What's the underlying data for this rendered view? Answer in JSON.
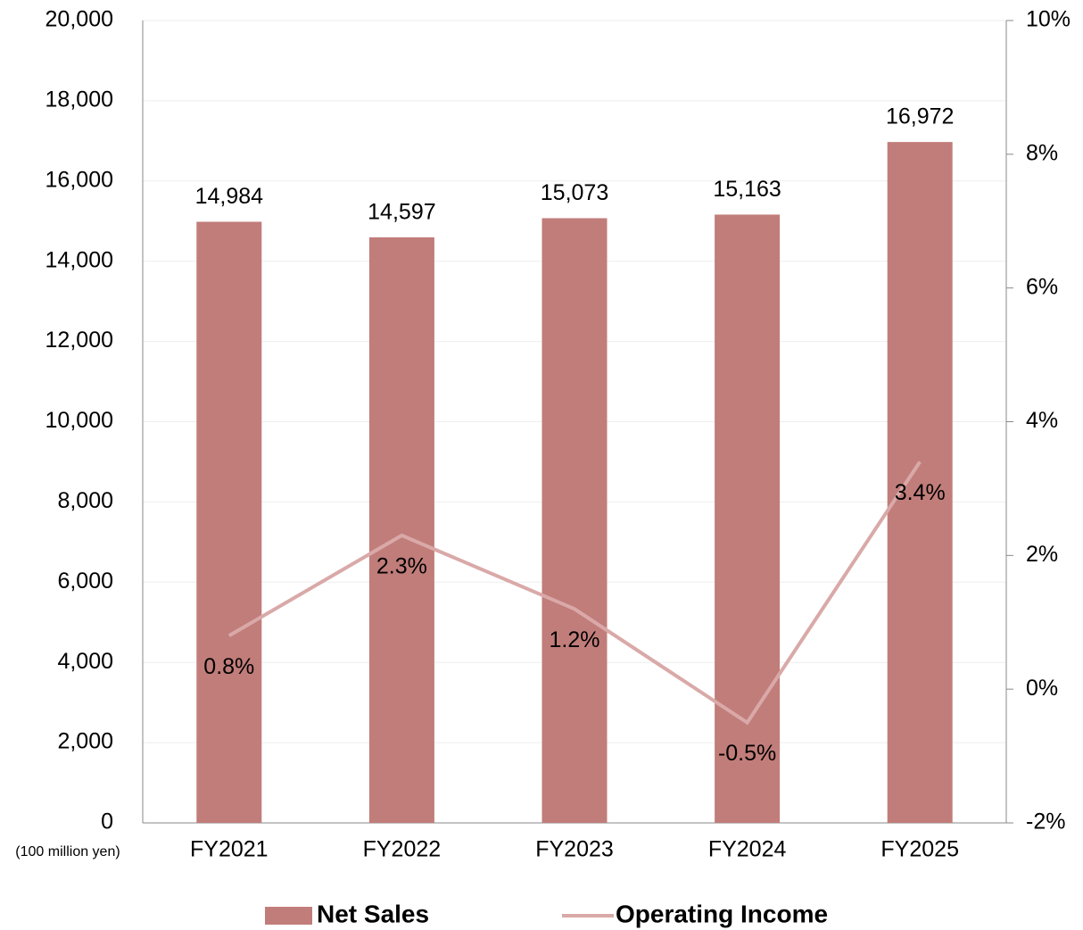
{
  "chart_data": {
    "type": "bar",
    "y_axis_label": "(100 million yen)",
    "categories": [
      "FY2021",
      "FY2022",
      "FY2023",
      "FY2024",
      "FY2025"
    ],
    "series": [
      {
        "name": "Net Sales",
        "type": "bar",
        "color": "#c17d7a",
        "values": [
          14984,
          14597,
          15073,
          15163,
          16972
        ],
        "value_labels": [
          "14,984",
          "14,597",
          "15,073",
          "15,163",
          "16,972"
        ]
      },
      {
        "name": "Operating Income",
        "type": "line",
        "axis": "y2",
        "color": "#d9a9a8",
        "values": [
          0.8,
          2.3,
          1.2,
          -0.5,
          3.4
        ],
        "value_labels": [
          "0.8%",
          "2.3%",
          "1.2%",
          "-0.5%",
          "3.4%"
        ]
      }
    ],
    "ylim": [
      0,
      20000
    ],
    "yticks": [
      0,
      {
        "value": 2000,
        "label": "2,000"
      },
      {
        "value": 4000,
        "label": "4,000"
      },
      {
        "value": 6000,
        "label": "6,000"
      },
      {
        "value": 8000,
        "label": "8,000"
      },
      {
        "value": 10000,
        "label": "10,000"
      },
      {
        "value": 12000,
        "label": "12,000"
      },
      {
        "value": 14000,
        "label": "14,000"
      },
      {
        "value": 16000,
        "label": "16,000"
      },
      {
        "value": 18000,
        "label": "18,000"
      },
      {
        "value": 20000,
        "label": "20,000"
      }
    ],
    "y2lim": [
      -2,
      10
    ],
    "y2ticks": [
      {
        "value": -2,
        "label": "-2%"
      },
      {
        "value": 0,
        "label": "0%"
      },
      {
        "value": 2,
        "label": "2%"
      },
      {
        "value": 4,
        "label": "4%"
      },
      {
        "value": 6,
        "label": "6%"
      },
      {
        "value": 8,
        "label": "8%"
      },
      {
        "value": 10,
        "label": "10%"
      }
    ],
    "grid": true,
    "legend": "bottom"
  }
}
